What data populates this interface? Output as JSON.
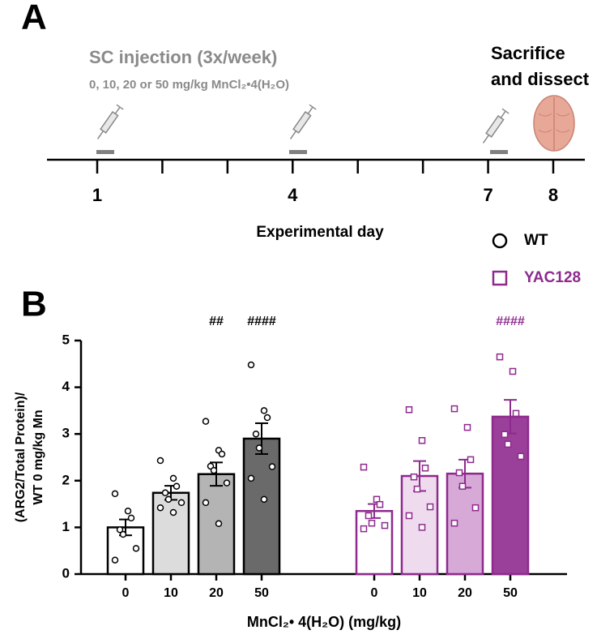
{
  "panel_a": {
    "label": "A",
    "title": "SC injection (3x/week)",
    "subtitle": "0, 10, 20 or 50 mg/kg MnCl₂•4(H₂O)",
    "endpoint": [
      "Sacrifice",
      "and dissect"
    ],
    "day_labels": [
      1,
      4,
      7,
      8
    ],
    "axis_label": "Experimental day"
  },
  "chart_data": {
    "type": "bar",
    "panel_label": "B",
    "categories": [
      "0",
      "10",
      "20",
      "50"
    ],
    "xlabel": "MnCl₂• 4(H₂O) (mg/kg)",
    "ylabel": [
      "(ARG2/Total Protein)/",
      "WT 0 mg/kg Mn"
    ],
    "ylim": [
      0,
      5
    ],
    "yticks": [
      0,
      1,
      2,
      3,
      4,
      5
    ],
    "series": [
      {
        "name": "WT",
        "color": "#000000",
        "marker": "circle",
        "fills": [
          "#ffffff",
          "#dcdcdc",
          "#b4b4b4",
          "#6a6a6a"
        ],
        "values": [
          1.0,
          1.74,
          2.14,
          2.9
        ],
        "errors": [
          0.17,
          0.15,
          0.25,
          0.33
        ],
        "points": [
          [
            1.72,
            1.35,
            1.2,
            0.95,
            0.85,
            0.55,
            0.3
          ],
          [
            2.43,
            2.05,
            1.88,
            1.74,
            1.6,
            1.53,
            1.42,
            1.32
          ],
          [
            3.27,
            2.65,
            2.57,
            2.31,
            2.22,
            1.95,
            1.53,
            1.08
          ],
          [
            4.48,
            3.5,
            3.35,
            3.0,
            2.7,
            2.3,
            2.05,
            1.6
          ]
        ],
        "significance": [
          null,
          null,
          "##",
          "####"
        ]
      },
      {
        "name": "YAC128",
        "color": "#8e2a8e",
        "marker": "square",
        "fills": [
          "#ffffff",
          "#eedcee",
          "#d7a9d7",
          "#9a3f9a"
        ],
        "values": [
          1.35,
          2.1,
          2.15,
          3.37
        ],
        "errors": [
          0.15,
          0.32,
          0.3,
          0.36
        ],
        "points": [
          [
            2.29,
            1.6,
            1.49,
            1.25,
            1.09,
            1.04,
            0.97
          ],
          [
            3.52,
            2.86,
            2.27,
            2.08,
            1.82,
            1.44,
            1.25,
            1.0
          ],
          [
            3.54,
            3.14,
            2.45,
            2.17,
            1.88,
            1.42,
            1.09
          ],
          [
            4.65,
            4.34,
            3.44,
            2.99,
            2.78,
            2.52
          ]
        ],
        "significance": [
          null,
          null,
          null,
          "####"
        ]
      }
    ]
  }
}
